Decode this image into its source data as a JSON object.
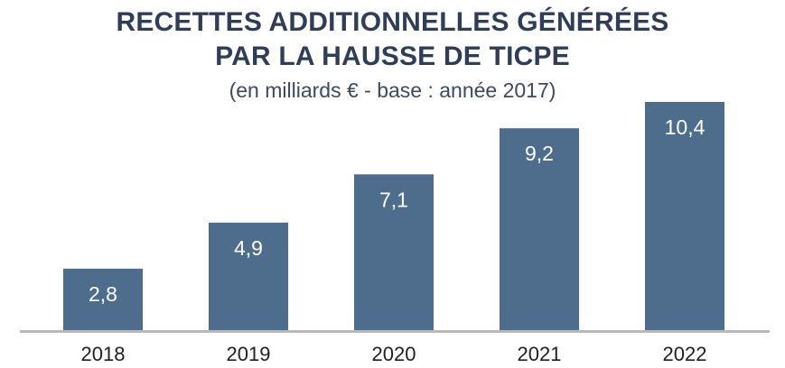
{
  "title_lines": [
    "RECETTES ADDITIONNELLES GÉNÉRÉES",
    "PAR LA HAUSSE DE TICPE"
  ],
  "subtitle": "(en milliards € - base : année 2017)",
  "colors": {
    "bar": "#4e6d8c",
    "title": "#2f3d57",
    "axis": "#b9b9b9"
  },
  "chart_data": {
    "type": "bar",
    "title": "RECETTES ADDITIONNELLES GÉNÉRÉES PAR LA HAUSSE DE TICPE",
    "subtitle": "(en milliards € - base : année 2017)",
    "categories": [
      "2018",
      "2019",
      "2020",
      "2021",
      "2022"
    ],
    "values": [
      2.8,
      4.9,
      7.1,
      9.2,
      10.4
    ],
    "value_labels": [
      "2,8",
      "4,9",
      "7,1",
      "9,2",
      "10,4"
    ],
    "xlabel": "",
    "ylabel": "",
    "ylim": [
      0,
      10.4
    ],
    "grid": false,
    "legend": "none"
  }
}
